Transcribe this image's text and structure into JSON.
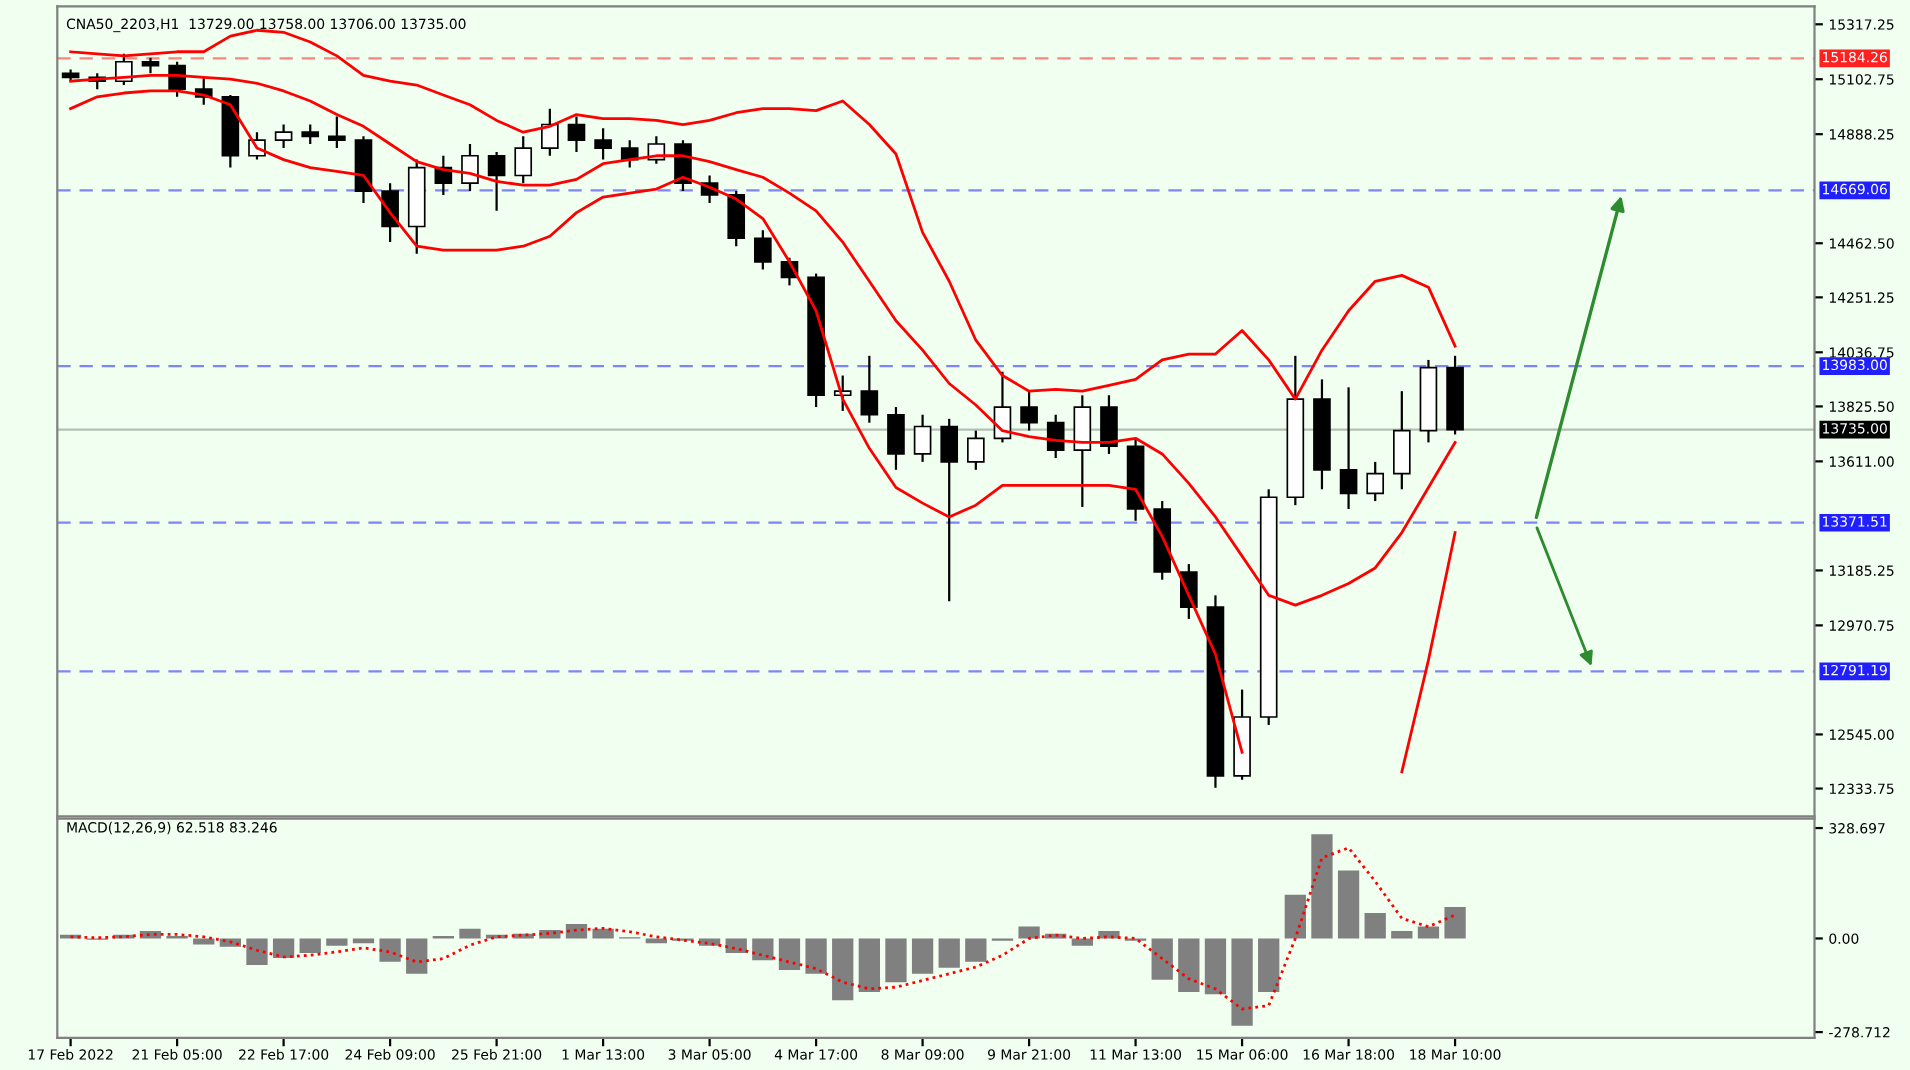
{
  "chart_data": [
    {
      "type": "candlestick",
      "title": "CNA50_2203,H1  13729.00 13758.00 13706.00 13735.00",
      "grid": false,
      "categories": [
        null,
        null,
        null,
        null,
        null,
        null,
        null,
        null,
        null,
        null,
        null,
        null,
        null,
        null,
        null,
        null,
        null,
        null,
        null,
        null,
        null,
        null,
        null,
        null,
        null,
        null,
        null,
        null,
        null,
        null,
        null,
        null,
        null,
        null,
        null,
        null,
        null,
        null,
        null,
        null,
        null,
        null,
        null,
        null,
        null,
        null,
        null,
        null,
        null,
        null,
        null,
        null,
        null,
        null,
        null,
        null,
        null,
        null,
        null,
        null,
        null,
        null,
        null,
        null,
        null,
        null
      ],
      "ohlc": [
        [
          15126,
          15141,
          15095,
          15110
        ],
        [
          15110,
          15126,
          15064,
          15095
        ],
        [
          15095,
          15202,
          15080,
          15171
        ],
        [
          15171,
          15187,
          15126,
          15156
        ],
        [
          15156,
          15171,
          15034,
          15064
        ],
        [
          15064,
          15110,
          15003,
          15034
        ],
        [
          15034,
          15041,
          14758,
          14804
        ],
        [
          14804,
          14896,
          14789,
          14865
        ],
        [
          14865,
          14926,
          14834,
          14896
        ],
        [
          14896,
          14926,
          14850,
          14880
        ],
        [
          14880,
          14957,
          14834,
          14865
        ],
        [
          14865,
          14880,
          14620,
          14666
        ],
        [
          14666,
          14697,
          14467,
          14528
        ],
        [
          14528,
          14789,
          14421,
          14758
        ],
        [
          14758,
          14804,
          14651,
          14697
        ],
        [
          14697,
          14850,
          14666,
          14804
        ],
        [
          14804,
          14819,
          14589,
          14727
        ],
        [
          14727,
          14880,
          14697,
          14834
        ],
        [
          14834,
          14988,
          14804,
          14926
        ],
        [
          14926,
          14957,
          14819,
          14865
        ],
        [
          14865,
          14911,
          14789,
          14834
        ],
        [
          14834,
          14865,
          14758,
          14789
        ],
        [
          14789,
          14880,
          14773,
          14850
        ],
        [
          14850,
          14865,
          14666,
          14697
        ],
        [
          14697,
          14727,
          14620,
          14651
        ],
        [
          14651,
          14666,
          14451,
          14482
        ],
        [
          14482,
          14513,
          14360,
          14390
        ],
        [
          14390,
          14406,
          14298,
          14329
        ],
        [
          14329,
          14344,
          13823,
          13869
        ],
        [
          13869,
          13946,
          13808,
          13885
        ],
        [
          13885,
          14023,
          13762,
          13793
        ],
        [
          13793,
          13823,
          13578,
          13640
        ],
        [
          13640,
          13793,
          13609,
          13747
        ],
        [
          13747,
          13777,
          13065,
          13609
        ],
        [
          13609,
          13731,
          13578,
          13701
        ],
        [
          13701,
          13961,
          13685,
          13823
        ],
        [
          13823,
          13885,
          13731,
          13762
        ],
        [
          13762,
          13793,
          13624,
          13655
        ],
        [
          13655,
          13869,
          13433,
          13823
        ],
        [
          13823,
          13869,
          13640,
          13670
        ],
        [
          13670,
          13701,
          13379,
          13425
        ],
        [
          13425,
          13456,
          13149,
          13179
        ],
        [
          13179,
          13210,
          12996,
          13042
        ],
        [
          13042,
          13088,
          12337,
          12383
        ],
        [
          12383,
          12720,
          12368,
          12613
        ],
        [
          12613,
          13502,
          12582,
          13471
        ],
        [
          13471,
          14023,
          13440,
          13854
        ],
        [
          13854,
          13931,
          13502,
          13578
        ],
        [
          13578,
          13900,
          13425,
          13486
        ],
        [
          13486,
          13609,
          13456,
          13563
        ],
        [
          13563,
          13885,
          13502,
          13731
        ],
        [
          13731,
          14007,
          13685,
          13977
        ],
        [
          13977,
          14023,
          13716,
          13735
        ],
        null,
        null,
        null,
        null,
        null,
        null,
        null,
        null,
        null,
        null,
        null,
        null,
        null
      ],
      "series": [
        {
          "type": "line",
          "color": "#ff0000",
          "values": [
            15210,
            15202,
            15194,
            15202,
            15210,
            15210,
            15271,
            15294,
            15286,
            15248,
            15194,
            15118,
            15095,
            15080,
            15041,
            15003,
            14942,
            14896,
            14919,
            14965,
            14949,
            14949,
            14942,
            14926,
            14942,
            14972,
            14988,
            14988,
            14980,
            15018,
            14926,
            14811,
            14505,
            14314,
            14084,
            13946,
            13885,
            13892,
            13885,
            13908,
            13931,
            14007,
            14030,
            14030,
            14122,
            14007,
            13854,
            14045,
            14199,
            14314,
            14337,
            14291,
            14061,
            null,
            null,
            null,
            null,
            null,
            null,
            null,
            null,
            null,
            null,
            null,
            null,
            null
          ]
        },
        {
          "type": "line",
          "color": "#ff0000",
          "values": [
            15095,
            15103,
            15110,
            15118,
            15118,
            15110,
            15103,
            15087,
            15057,
            15018,
            14965,
            14919,
            14850,
            14781,
            14750,
            14735,
            14704,
            14689,
            14689,
            14712,
            14773,
            14789,
            14804,
            14804,
            14781,
            14750,
            14720,
            14658,
            14589,
            14467,
            14314,
            14160,
            14045,
            13915,
            13831,
            13731,
            13708,
            13693,
            13685,
            13685,
            13701,
            13640,
            13525,
            13394,
            13241,
            13088,
            13050,
            13088,
            13134,
            13195,
            13333,
            13509,
            13685,
            null,
            null,
            null,
            null,
            null,
            null,
            null,
            null,
            null,
            null,
            null,
            null,
            null
          ]
        },
        {
          "type": "line",
          "color": "#ff0000",
          "values": [
            14988,
            15034,
            15049,
            15057,
            15057,
            15041,
            15003,
            14834,
            14789,
            14758,
            14743,
            14727,
            14582,
            14451,
            14436,
            14436,
            14436,
            14451,
            14490,
            14582,
            14643,
            14658,
            14674,
            14720,
            14681,
            14635,
            14559,
            14390,
            14199,
            13854,
            13662,
            13509,
            13448,
            13394,
            13440,
            13517,
            13517,
            13517,
            13517,
            13517,
            13502,
            13318,
            13088,
            12858,
            12475,
            null,
            null,
            null,
            null,
            null,
            12399,
            12835,
            13333,
            null,
            null,
            null,
            null,
            null,
            null,
            null,
            null,
            null,
            null,
            null,
            null,
            null
          ]
        }
      ],
      "ylim": [
        12225,
        15387
      ],
      "yticks": [
        15317.25,
        15102.75,
        14888.25,
        {
          "value": 14462.5,
          "label": "14462.50"
        },
        14251.25,
        14036.75,
        {
          "value": 13825.5,
          "label": "13825.50"
        },
        {
          "value": 13611,
          "label": "13611.00"
        },
        13185.25,
        12970.75,
        {
          "value": 12545,
          "label": "12545.00"
        },
        12333.75
      ],
      "ref_lines": [
        {
          "axis": "y",
          "value": 15184.26,
          "label": "15184.26",
          "color": "#ff2020",
          "line_style": "dashed"
        },
        {
          "axis": "y",
          "value": 14669.06,
          "label": "14669.06",
          "color": "#2020ff",
          "line_style": "dashed"
        },
        {
          "axis": "y",
          "value": 13983.0,
          "label": "13983.00",
          "color": "#2020ff",
          "line_style": "dashed"
        },
        {
          "axis": "y",
          "value": 13735.0,
          "label": "13735.00",
          "color": "#000000",
          "line_style": "solid"
        },
        {
          "axis": "y",
          "value": 13371.51,
          "label": "13371.51",
          "color": "#2020ff",
          "line_style": "dashed"
        },
        {
          "axis": "y",
          "value": 12791.19,
          "label": "12791.19",
          "color": "#2020ff",
          "line_style": "dashed"
        }
      ]
    },
    {
      "type": "bar",
      "title": "MACD(12,26,9) 62.518 83.246",
      "grid": false,
      "categories": [
        "17 Feb 2022",
        null,
        null,
        null,
        "21 Feb 05:00",
        null,
        null,
        null,
        "22 Feb 17:00",
        null,
        null,
        null,
        "24 Feb 09:00",
        null,
        null,
        null,
        "25 Feb 21:00",
        null,
        null,
        null,
        "1 Mar 13:00",
        null,
        null,
        null,
        "3 Mar 05:00",
        null,
        null,
        null,
        "4 Mar 17:00",
        null,
        null,
        null,
        "8 Mar 09:00",
        null,
        null,
        null,
        "9 Mar 21:00",
        null,
        null,
        null,
        "11 Mar 13:00",
        null,
        null,
        null,
        "15 Mar 06:00",
        null,
        null,
        null,
        "16 Mar 18:00",
        null,
        null,
        null,
        "18 Mar 10:00",
        null,
        null,
        null,
        null,
        null,
        null,
        null,
        null,
        null,
        null,
        null,
        null,
        null
      ],
      "series": [
        {
          "color": "#808080",
          "values": [
            11,
            -4,
            11,
            22,
            7,
            -18,
            -25,
            -79,
            -58,
            -43,
            -22,
            -14,
            -69,
            -105,
            7,
            29,
            11,
            14,
            25,
            43,
            29,
            4,
            -14,
            -7,
            -22,
            -43,
            -65,
            -94,
            -105,
            -184,
            -159,
            -130,
            -105,
            -87,
            -69,
            -7,
            36,
            14,
            -22,
            22,
            -7,
            -123,
            -159,
            -166,
            -260,
            -159,
            130,
            310,
            202,
            76,
            22,
            36,
            94,
            null,
            null,
            null,
            null,
            null,
            null,
            null,
            null,
            null,
            null,
            null,
            null,
            null
          ]
        },
        {
          "type": "line",
          "color": "#ff0000",
          "line_style": "dotted",
          "values": [
            5,
            2,
            5,
            12,
            12,
            5,
            -10,
            -35,
            -55,
            -50,
            -40,
            -28,
            -40,
            -70,
            -60,
            -20,
            5,
            10,
            15,
            25,
            30,
            20,
            5,
            -5,
            -15,
            -30,
            -50,
            -70,
            -90,
            -130,
            -150,
            -145,
            -125,
            -105,
            -85,
            -50,
            0,
            10,
            0,
            5,
            0,
            -60,
            -120,
            -150,
            -210,
            -200,
            0,
            240,
            270,
            170,
            60,
            35,
            70,
            null,
            null,
            null,
            null,
            null,
            null,
            null,
            null,
            null,
            null,
            null,
            null,
            null
          ]
        }
      ],
      "ylim": [
        -296,
        357
      ],
      "yticks": [
        328.697,
        {
          "value": 0,
          "label": "0.00"
        },
        {
          "value": -278.712,
          "label": "-278.712"
        }
      ]
    }
  ]
}
